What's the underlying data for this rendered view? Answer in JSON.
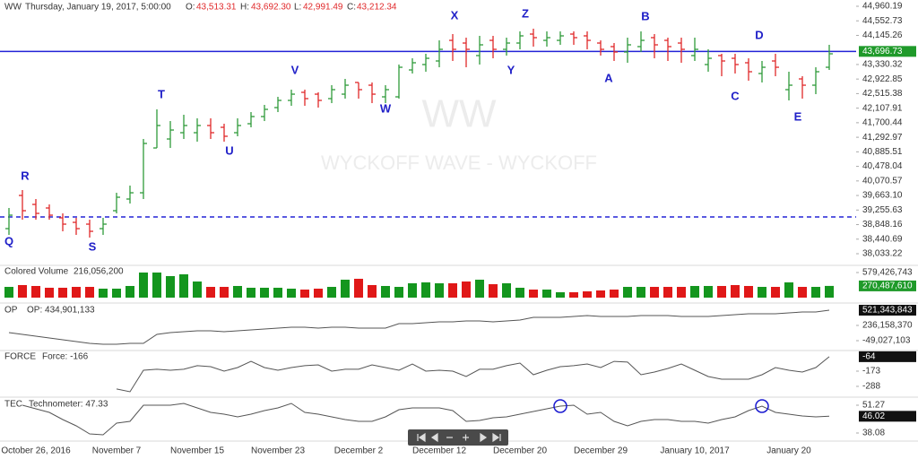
{
  "chart_data": [
    {
      "type": "ohlc",
      "symbol": "WW",
      "header": {
        "datetime": "Thursday, January 19, 2017, 5:00:00",
        "o_label": "O:",
        "o": "43,513.31",
        "h_label": "H:",
        "h": "43,692.30",
        "l_label": "L:",
        "l": "42,991.49",
        "c_label": "C:",
        "c": "43,212.34"
      },
      "watermark": [
        "WW",
        "WYCKOFF WAVE - WYCKOFF"
      ],
      "wave_labels": [
        "Q",
        "R",
        "S",
        "T",
        "U",
        "V",
        "W",
        "X",
        "Y",
        "Z",
        "A",
        "B",
        "C",
        "D",
        "E"
      ],
      "categories": [
        null,
        null,
        "October 26, 2016",
        null,
        null,
        null,
        null,
        null,
        "November 7",
        null,
        null,
        null,
        null,
        null,
        "November 15",
        null,
        null,
        null,
        null,
        null,
        "November 23",
        null,
        null,
        null,
        null,
        null,
        "December 2",
        null,
        null,
        null,
        null,
        null,
        "December 12",
        null,
        null,
        null,
        null,
        null,
        "December 20",
        null,
        null,
        null,
        null,
        null,
        "December 29",
        null,
        null,
        null,
        null,
        null,
        null,
        "January 10, 2017",
        null,
        null,
        null,
        null,
        null,
        null,
        "January 20",
        null,
        null,
        null
      ],
      "open": [
        38735,
        39664,
        39413,
        39313,
        39037,
        38911,
        38861,
        38735,
        39237,
        39564,
        39739,
        40994,
        41245,
        41421,
        41421,
        41622,
        41572,
        41421,
        41672,
        41873,
        42124,
        42325,
        42551,
        42500,
        42375,
        42500,
        42827,
        42751,
        42425,
        42425,
        43178,
        43329,
        43429,
        44006,
        43931,
        43580,
        44006,
        43755,
        43931,
        44182,
        44006,
        44006,
        44182,
        44132,
        43931,
        43831,
        43680,
        43831,
        44082,
        44006,
        43931,
        43580,
        43329,
        43580,
        43504,
        43379,
        43078,
        43429,
        42626,
        42927,
        42751,
        43253
      ],
      "high": [
        39313,
        39815,
        39564,
        39413,
        39162,
        39037,
        38986,
        39037,
        39739,
        39940,
        41245,
        42074,
        41747,
        41923,
        41823,
        41823,
        41672,
        41823,
        41998,
        42199,
        42425,
        42626,
        42626,
        42551,
        42751,
        42927,
        42827,
        42827,
        42751,
        43329,
        43504,
        43630,
        44006,
        44182,
        44082,
        44132,
        44132,
        44082,
        44257,
        44333,
        44257,
        44257,
        44257,
        44257,
        44006,
        43931,
        44082,
        44257,
        44182,
        44082,
        44082,
        44082,
        43755,
        43630,
        43630,
        43504,
        43429,
        43630,
        43128,
        43002,
        43253,
        43881
      ],
      "low": [
        38560,
        38986,
        38986,
        38986,
        38660,
        38560,
        38484,
        38560,
        39162,
        39438,
        39564,
        40994,
        40994,
        41245,
        41170,
        41245,
        41170,
        41321,
        41572,
        41747,
        41998,
        42174,
        42174,
        42124,
        42249,
        42375,
        42375,
        42249,
        42249,
        42375,
        43078,
        43128,
        43253,
        43429,
        43253,
        43329,
        43504,
        43580,
        43755,
        43831,
        43831,
        43881,
        43881,
        43755,
        43580,
        43429,
        43379,
        43680,
        43504,
        43429,
        43379,
        43429,
        43128,
        43002,
        43078,
        42877,
        42827,
        43002,
        42325,
        42375,
        42500,
        43178
      ],
      "close": [
        39112,
        39237,
        39162,
        39112,
        38861,
        38735,
        38660,
        38861,
        39614,
        39739,
        41120,
        41622,
        41496,
        41622,
        41622,
        41421,
        41321,
        41622,
        41873,
        42074,
        42325,
        42500,
        42375,
        42325,
        42626,
        42751,
        42626,
        42500,
        42626,
        43253,
        43379,
        43504,
        43755,
        43755,
        43755,
        43881,
        43755,
        43931,
        44132,
        44082,
        44082,
        44132,
        44082,
        44006,
        43755,
        43680,
        43881,
        44006,
        43881,
        43831,
        43755,
        43755,
        43504,
        43429,
        43329,
        43128,
        43253,
        43253,
        42751,
        42751,
        43128,
        43630
      ],
      "up_color": "#2f9a3a",
      "down_color": "#e0282a",
      "ylim": [
        37732,
        45136
      ],
      "yticks": [
        {
          "value": 44960.19,
          "label": "44,960.19"
        },
        {
          "value": 44552.73,
          "label": "44,552.73"
        },
        {
          "value": 44145.26,
          "label": "44,145.26"
        },
        {
          "value": 43330.32,
          "label": "43,330.32"
        },
        {
          "value": 42922.85,
          "label": "42,922.85"
        },
        {
          "value": 42515.38,
          "label": "42,515.38"
        },
        {
          "value": 42107.91,
          "label": "42,107.91"
        },
        {
          "value": 41700.44,
          "label": "41,700.44"
        },
        {
          "value": 41292.97,
          "label": "41,292.97"
        },
        {
          "value": 40885.51,
          "label": "40,885.51"
        },
        {
          "value": 40478.04,
          "label": "40,478.04"
        },
        {
          "value": 40070.57,
          "label": "40,070.57"
        },
        {
          "value": 39663.1,
          "label": "39,663.10"
        },
        {
          "value": 39255.63,
          "label": "39,255.63"
        },
        {
          "value": 38848.16,
          "label": "38,848.16"
        },
        {
          "value": 38440.69,
          "label": "38,440.69"
        },
        {
          "value": 38033.22,
          "label": "38,033.22"
        }
      ],
      "last_value": {
        "value": 43696.73,
        "label": "43,696.73"
      },
      "last_color": "#1f9a2a",
      "line_color": "#2323d6",
      "support_line": 39062
    },
    {
      "type": "bar",
      "title": "Colored Volume",
      "readout": "216,056,200",
      "values": [
        248000000,
        290000000,
        269000000,
        228000000,
        228000000,
        248000000,
        248000000,
        207000000,
        207000000,
        269000000,
        579000000,
        579000000,
        497000000,
        538000000,
        372000000,
        248000000,
        248000000,
        269000000,
        228000000,
        228000000,
        228000000,
        207000000,
        186000000,
        207000000,
        248000000,
        414000000,
        435000000,
        290000000,
        269000000,
        248000000,
        331000000,
        352000000,
        331000000,
        331000000,
        372000000,
        414000000,
        310000000,
        331000000,
        228000000,
        186000000,
        186000000,
        124000000,
        124000000,
        145000000,
        166000000,
        186000000,
        248000000,
        248000000,
        248000000,
        248000000,
        248000000,
        269000000,
        269000000,
        269000000,
        290000000,
        269000000,
        248000000,
        248000000,
        352000000,
        248000000,
        248000000,
        270487610
      ],
      "up_color": "#14961e",
      "down_color": "#e01818",
      "ylim": [
        0,
        724000000
      ],
      "yticks": [
        {
          "value": 579426743,
          "label": "579,426,743"
        }
      ],
      "last_value": {
        "value": 270487610,
        "label": "270,487,610"
      },
      "last_color": "#1f9a2a"
    },
    {
      "type": "line",
      "title": "OP",
      "readout": "OP: 434,901,133",
      "color": "#555555",
      "values": [
        101950000,
        68400000,
        34850000,
        1300000,
        -32250000,
        -65810000,
        -99360000,
        -116130000,
        -116130000,
        -99360000,
        -99360000,
        68400000,
        101950000,
        118730000,
        135500000,
        135500000,
        118730000,
        135500000,
        152280000,
        169060000,
        185830000,
        202610000,
        202610000,
        185830000,
        202610000,
        202610000,
        185830000,
        185830000,
        185830000,
        269710000,
        269710000,
        286490000,
        303260000,
        303260000,
        320040000,
        320040000,
        303260000,
        320040000,
        336810000,
        387140000,
        387140000,
        387140000,
        403920000,
        420690000,
        403920000,
        403920000,
        403920000,
        420690000,
        420690000,
        420690000,
        403920000,
        403920000,
        403920000,
        420690000,
        437470000,
        454250000,
        454250000,
        454250000,
        471020000,
        487800000,
        487800000,
        521343843
      ],
      "ylim": [
        -216800000,
        622000000
      ],
      "yticks": [
        {
          "value": 236158370,
          "label": "236,158,370"
        },
        {
          "value": -49027103,
          "label": "-49,027,103"
        }
      ],
      "last_value": {
        "value": 521343843,
        "label": "521,343,843"
      },
      "last_color": "#111111"
    },
    {
      "type": "line",
      "title": "FORCE",
      "readout": "Force: -166",
      "color": "#555555",
      "values": [
        null,
        null,
        null,
        null,
        null,
        null,
        null,
        null,
        -308,
        -329,
        -166,
        -159,
        -166,
        -159,
        -132,
        -139,
        -173,
        -146,
        -99,
        -146,
        -166,
        -146,
        -132,
        -126,
        -173,
        -159,
        -159,
        -126,
        -146,
        -166,
        -119,
        -173,
        -166,
        -173,
        -214,
        -159,
        -159,
        -132,
        -112,
        -200,
        -166,
        -139,
        -132,
        -119,
        -146,
        -99,
        -105,
        -200,
        -180,
        -153,
        -119,
        -166,
        -214,
        -234,
        -234,
        -234,
        -200,
        -146,
        -166,
        -180,
        -146,
        -64
      ],
      "ylim": [
        -349,
        -31
      ],
      "yticks": [
        -173,
        -288
      ],
      "last_value": -64,
      "last_color": "#111111"
    },
    {
      "type": "line",
      "title": "TEC",
      "readout": "Technometer: 47.33",
      "color": "#555555",
      "values": [
        null,
        51.27,
        49.57,
        47.87,
        44.46,
        41.48,
        37.65,
        37.23,
        42.76,
        43.61,
        51.27,
        51.27,
        51.27,
        52.12,
        50.0,
        47.87,
        47.02,
        45.74,
        47.02,
        48.72,
        50.0,
        52.12,
        47.87,
        47.02,
        45.74,
        44.46,
        43.61,
        43.61,
        45.74,
        49.14,
        50.0,
        50.0,
        50.0,
        48.72,
        43.61,
        44.04,
        45.31,
        45.74,
        47.02,
        48.29,
        49.57,
        50.84,
        51.27,
        47.02,
        47.87,
        43.61,
        41.48,
        43.61,
        44.46,
        44.46,
        43.61,
        43.61,
        42.76,
        44.46,
        45.74,
        48.72,
        50.84,
        47.87,
        47.02,
        46.16,
        45.74,
        46.02
      ],
      "ylim": [
        35.1,
        54.25
      ],
      "yticks": [
        51.27,
        38.08
      ],
      "last_value": 46.02,
      "last_color": "#111111"
    }
  ]
}
